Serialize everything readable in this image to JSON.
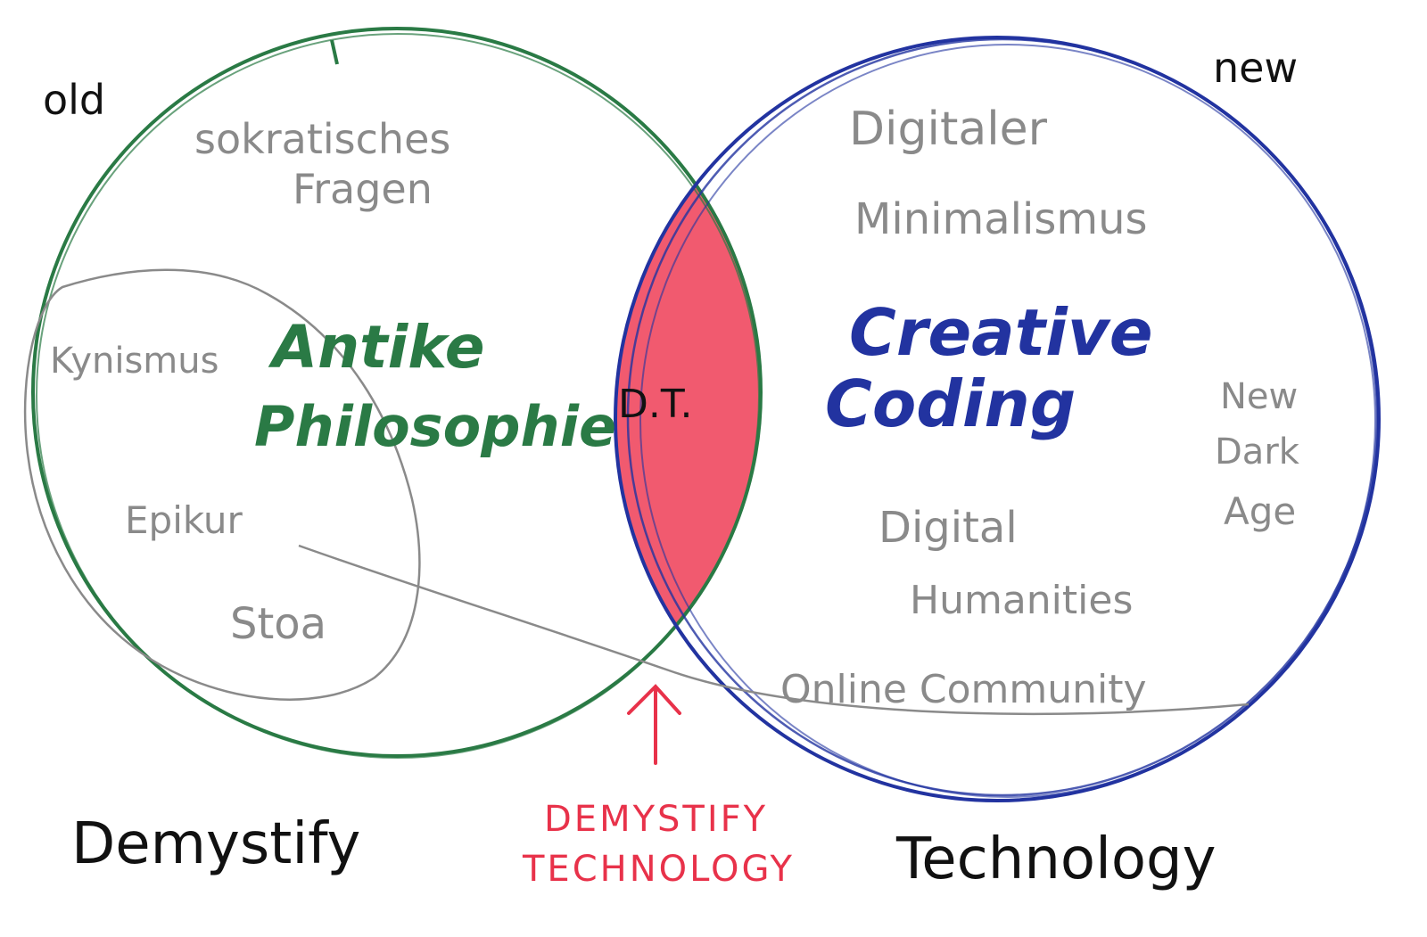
{
  "colors": {
    "green": "#2a7a45",
    "blue": "#2233a0",
    "red": "#e8324a",
    "red_fill": "#f0485f",
    "gray": "#8a8a8a",
    "black": "#111111"
  },
  "corner_labels": {
    "old": "old",
    "new": "new"
  },
  "left_circle": {
    "title_line1": "Antike",
    "title_line2": "Philosophie",
    "topics": {
      "socratic_line1": "sokratisches",
      "socratic_line2": "Fragen",
      "kynismus": "Kynismus",
      "epikur": "Epikur",
      "stoa": "Stoa"
    }
  },
  "right_circle": {
    "title_line1": "Creative",
    "title_line2": "Coding",
    "topics": {
      "digital_minimalism_line1": "Digitaler",
      "digital_minimalism_line2": "Minimalismus",
      "new_dark_age_line1": "New",
      "new_dark_age_line2": "Dark",
      "new_dark_age_line3": "Age",
      "digital_humanities_line1": "Digital",
      "digital_humanities_line2": "Humanities",
      "online_community": "Online Community"
    }
  },
  "intersection": {
    "label": "D.T.",
    "caption_line1": "DEMYSTIFY",
    "caption_line2": "TECHNOLOGY"
  },
  "bottom_labels": {
    "left": "Demystify",
    "right": "Technology"
  }
}
